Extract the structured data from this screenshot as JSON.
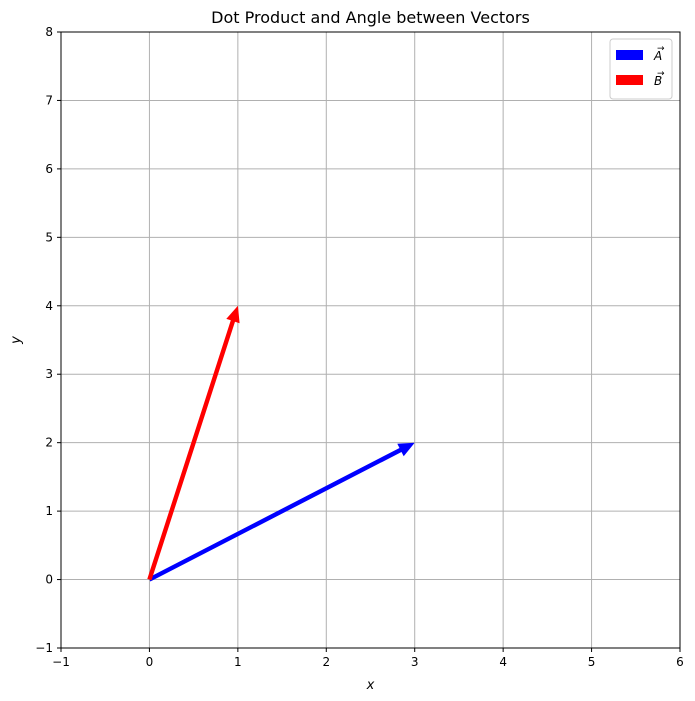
{
  "chart_data": {
    "type": "quiver",
    "title": "Dot Product and Angle between Vectors",
    "xlabel": "x",
    "ylabel": "y",
    "xlim": [
      -1,
      6
    ],
    "ylim": [
      -1,
      8
    ],
    "xticks": [
      "-1",
      "0",
      "1",
      "2",
      "3",
      "4",
      "5",
      "6"
    ],
    "yticks": [
      "-1",
      "0",
      "1",
      "2",
      "3",
      "4",
      "5",
      "6",
      "7",
      "8"
    ],
    "grid": true,
    "legend_position": "top-right",
    "series": [
      {
        "name": "A",
        "label_arrow": "→",
        "origin": [
          0,
          0
        ],
        "vector": [
          3,
          2
        ],
        "color": "#0000ff"
      },
      {
        "name": "B",
        "label_arrow": "→",
        "origin": [
          0,
          0
        ],
        "vector": [
          1,
          4
        ],
        "color": "#ff0000"
      }
    ]
  }
}
